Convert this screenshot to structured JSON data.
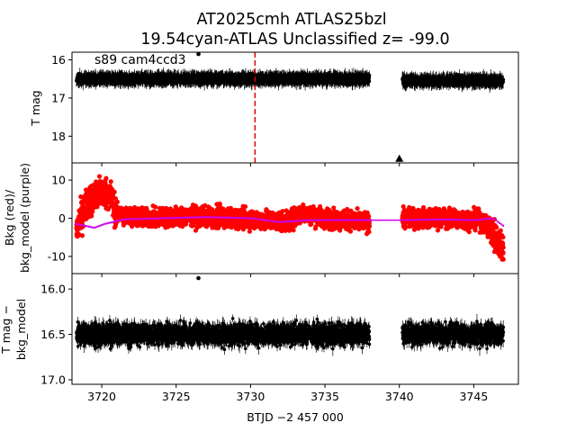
{
  "chart_data": [
    {
      "type": "scatter",
      "title_line1": "AT2025cmh  ATLAS25bzl",
      "title_line2": "19.54cyan-ATLAS Unclassified z= -99.0",
      "annotation": "s89 cam4ccd3",
      "ylabel": "T mag",
      "xlim": [
        3718,
        3748
      ],
      "ylim": [
        18.7,
        15.8
      ],
      "y_inverted": true,
      "yticks": [
        16,
        17,
        18
      ],
      "vline_x": 3730.3,
      "triangle_marker": {
        "x": 3740.0,
        "y": 18.6
      },
      "outlier_point": {
        "x": 3726.5,
        "y": 15.85
      },
      "segments": [
        {
          "x_start": 3718.3,
          "x_end": 3738.0,
          "y_center": 16.5,
          "y_spread": 0.18
        },
        {
          "x_start": 3740.2,
          "x_end": 3747.0,
          "y_center": 16.55,
          "y_spread": 0.18
        }
      ],
      "point_color": "#000000",
      "vline_color": "#e00000"
    },
    {
      "type": "scatter",
      "ylabel_line1": "Bkg (red)/",
      "ylabel_line2": "bkg_model (purple)",
      "xlim": [
        3718,
        3748
      ],
      "ylim": [
        -14.5,
        14.5
      ],
      "yticks": [
        -10,
        0,
        10
      ],
      "bkg_color": "#ff0000",
      "model_color": "#cc00ee",
      "bkg_trend": [
        {
          "x": 3718.3,
          "y": -3
        },
        {
          "x": 3719.0,
          "y": 4
        },
        {
          "x": 3720.0,
          "y": 7
        },
        {
          "x": 3720.6,
          "y": 6
        },
        {
          "x": 3721.0,
          "y": 1
        },
        {
          "x": 3723.0,
          "y": 0
        },
        {
          "x": 3726.0,
          "y": 0.5
        },
        {
          "x": 3729.0,
          "y": 0
        },
        {
          "x": 3731.0,
          "y": -0.5
        },
        {
          "x": 3732.5,
          "y": -1
        },
        {
          "x": 3733.5,
          "y": 1.5
        },
        {
          "x": 3735.0,
          "y": 0
        },
        {
          "x": 3738.0,
          "y": -1
        },
        {
          "x": 3740.2,
          "y": 0
        },
        {
          "x": 3743.0,
          "y": 0
        },
        {
          "x": 3745.5,
          "y": -0.5
        },
        {
          "x": 3746.3,
          "y": -4
        },
        {
          "x": 3747.0,
          "y": -8
        }
      ],
      "model_curve": [
        {
          "x": 3718.3,
          "y": -1.5
        },
        {
          "x": 3719.5,
          "y": -2.5
        },
        {
          "x": 3720.2,
          "y": -1.5
        },
        {
          "x": 3721.5,
          "y": -0.3
        },
        {
          "x": 3724.0,
          "y": 0
        },
        {
          "x": 3727.0,
          "y": 0.3
        },
        {
          "x": 3730.0,
          "y": 0
        },
        {
          "x": 3732.0,
          "y": -1
        },
        {
          "x": 3734.0,
          "y": -0.5
        },
        {
          "x": 3736.0,
          "y": -0.5
        },
        {
          "x": 3738.0,
          "y": -0.5
        },
        {
          "x": 3740.2,
          "y": -0.5
        },
        {
          "x": 3743.0,
          "y": -0.3
        },
        {
          "x": 3745.0,
          "y": -0.5
        },
        {
          "x": 3746.3,
          "y": 0
        },
        {
          "x": 3747.0,
          "y": -2
        }
      ]
    },
    {
      "type": "scatter",
      "ylabel_line1": "T mag −",
      "ylabel_line2": "bkg_model",
      "xlabel": "BTJD −2 457 000",
      "xlim": [
        3718,
        3748
      ],
      "ylim": [
        17.05,
        15.83
      ],
      "y_inverted": true,
      "yticks": [
        16.0,
        16.5,
        17.0
      ],
      "ytick_labels": [
        "16.0",
        "16.5",
        "17.0"
      ],
      "xticks": [
        3720,
        3725,
        3730,
        3735,
        3740,
        3745
      ],
      "outlier_point": {
        "x": 3726.5,
        "y": 15.88
      },
      "segments": [
        {
          "x_start": 3718.3,
          "x_end": 3738.0,
          "y_center": 16.5,
          "y_spread": 0.2
        },
        {
          "x_start": 3740.2,
          "x_end": 3747.0,
          "y_center": 16.5,
          "y_spread": 0.2
        }
      ],
      "point_color": "#000000"
    }
  ]
}
